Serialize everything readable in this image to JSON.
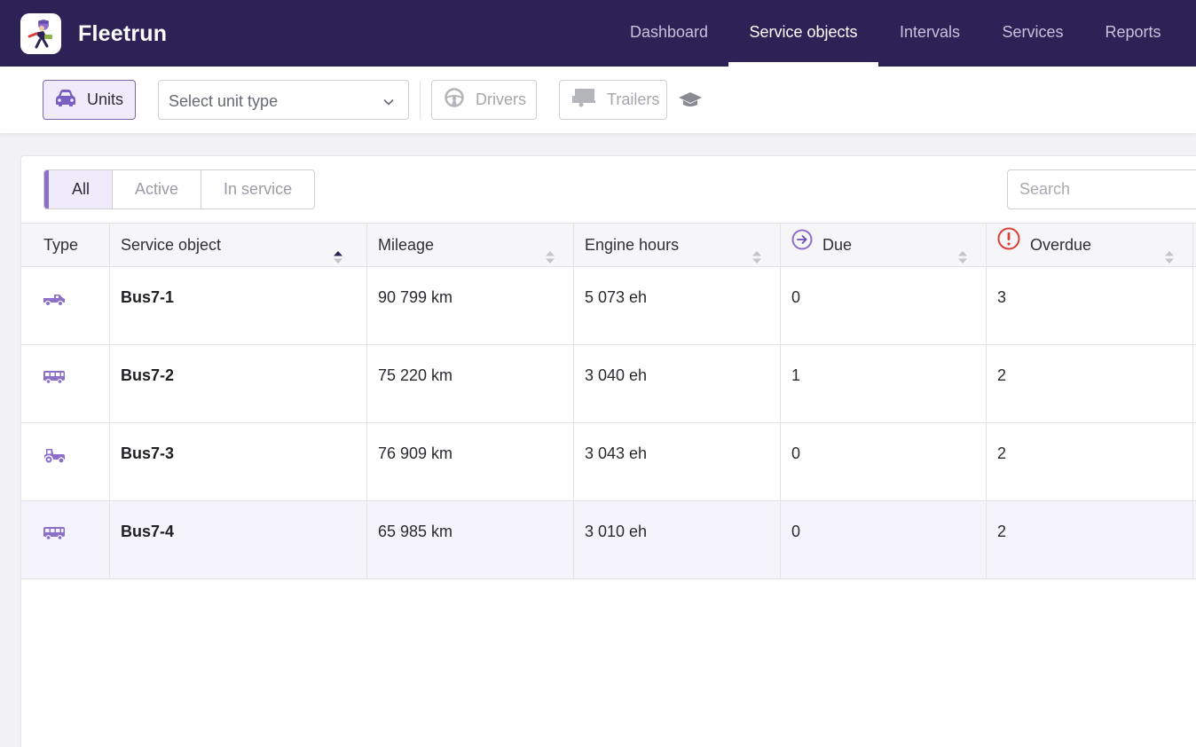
{
  "app": {
    "title": "Fleetrun"
  },
  "nav": {
    "tabs": [
      {
        "label": "Dashboard",
        "active": false
      },
      {
        "label": "Service objects",
        "active": true
      },
      {
        "label": "Intervals",
        "active": false
      },
      {
        "label": "Services",
        "active": false
      },
      {
        "label": "Reports",
        "active": false
      }
    ]
  },
  "toolbar": {
    "units_label": "Units",
    "unit_type_select": {
      "placeholder": "Select unit type"
    },
    "drivers_label": "Drivers",
    "trailers_label": "Trailers"
  },
  "filters": {
    "options": [
      {
        "label": "All",
        "active": true
      },
      {
        "label": "Active",
        "active": false
      },
      {
        "label": "In service",
        "active": false
      }
    ]
  },
  "search": {
    "placeholder": "Search"
  },
  "table": {
    "columns": [
      "Type",
      "Service object",
      "Mileage",
      "Engine hours",
      "Due",
      "Overdue"
    ],
    "rows": [
      {
        "type_icon": "pickup-truck-icon",
        "name": "Bus7-1",
        "mileage": "90 799 km",
        "engine_hours": "5 073 eh",
        "due": "0",
        "overdue": "3"
      },
      {
        "type_icon": "bus-icon",
        "name": "Bus7-2",
        "mileage": "75 220 km",
        "engine_hours": "3 040 eh",
        "due": "1",
        "overdue": "2"
      },
      {
        "type_icon": "tractor-icon",
        "name": "Bus7-3",
        "mileage": "76 909 km",
        "engine_hours": "3 043 eh",
        "due": "0",
        "overdue": "2"
      },
      {
        "type_icon": "bus-icon",
        "name": "Bus7-4",
        "mileage": "65 985 km",
        "engine_hours": "3 010 eh",
        "due": "0",
        "overdue": "2"
      }
    ]
  },
  "colors": {
    "header_bg": "#2d2255",
    "accent": "#8b6fc8",
    "overdue_red": "#d9403a"
  }
}
